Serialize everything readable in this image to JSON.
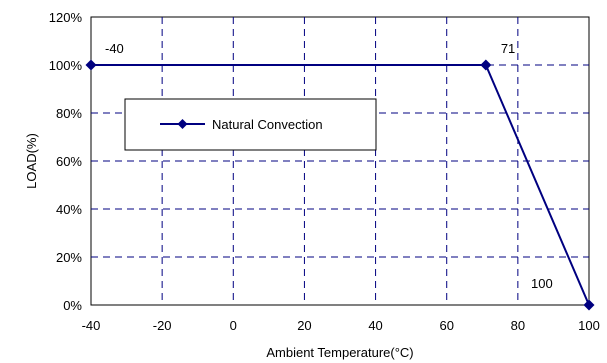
{
  "chart_data": {
    "type": "line",
    "title": "",
    "xlabel": "Ambient Temperature(°C)",
    "ylabel": "LOAD(%)",
    "xlim": [
      -40,
      100
    ],
    "ylim": [
      0,
      120
    ],
    "x_ticks": [
      -40,
      -20,
      0,
      20,
      40,
      60,
      80,
      100
    ],
    "y_ticks": [
      0,
      20,
      40,
      60,
      80,
      100,
      120
    ],
    "x_tick_labels": [
      "-40",
      "-20",
      "0",
      "20",
      "40",
      "60",
      "80",
      "100"
    ],
    "y_tick_labels": [
      "0%",
      "20%",
      "40%",
      "60%",
      "80%",
      "100%",
      "120%"
    ],
    "grid": "dashed",
    "legend": {
      "position": "upper-left-inside",
      "entries": [
        "Natural Convection"
      ]
    },
    "series": [
      {
        "name": "Natural Convection",
        "color": "#000080",
        "marker": "diamond",
        "points": [
          {
            "x": -40,
            "y": 100
          },
          {
            "x": 71,
            "y": 100
          },
          {
            "x": 100,
            "y": 0
          }
        ]
      }
    ],
    "annotations": [
      {
        "text": "-40",
        "x": -40,
        "y": 100
      },
      {
        "text": "71",
        "x": 71,
        "y": 100
      },
      {
        "text": "100",
        "x": 100,
        "y": 0
      }
    ]
  }
}
